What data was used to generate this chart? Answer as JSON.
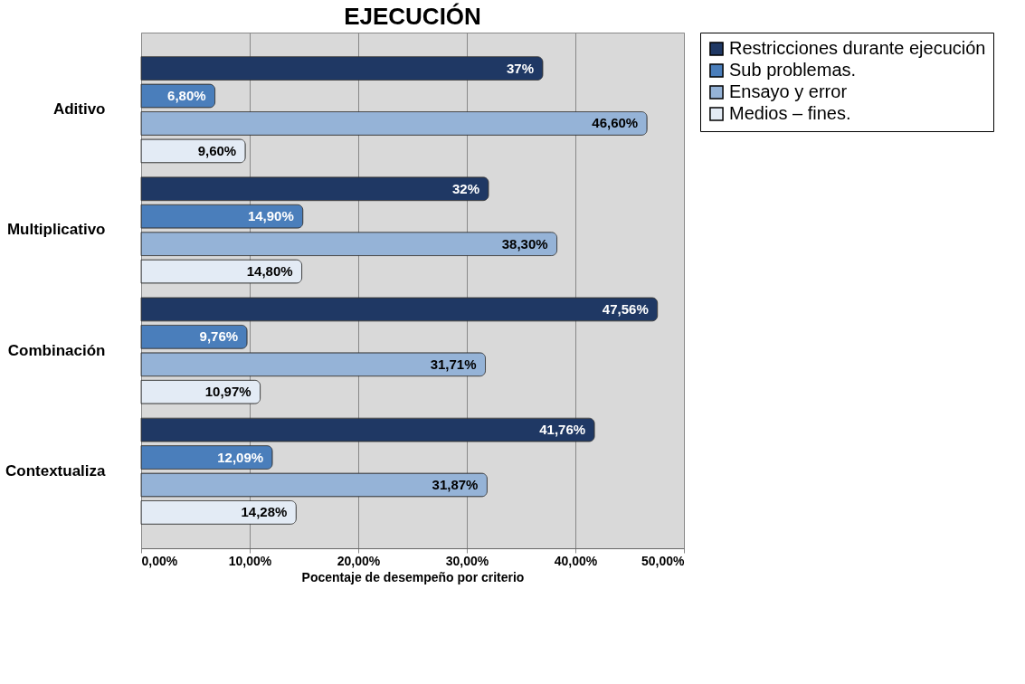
{
  "chart_data": {
    "type": "bar",
    "orientation": "horizontal",
    "title": "EJECUCIÓN",
    "xlabel": "Pocentaje de desempeño por criterio",
    "categories": [
      "Aditivo",
      "Multiplicativo",
      "Combinación",
      "Contextualiza"
    ],
    "series": [
      {
        "name": "Restricciones durante ejecución",
        "color": "#1f3864",
        "values": [
          37,
          32,
          47.56,
          41.76
        ],
        "value_labels": [
          "37%",
          "32%",
          "47,56%",
          "41,76%"
        ]
      },
      {
        "name": "Sub problemas.",
        "color": "#4a7ebb",
        "values": [
          6.8,
          14.9,
          9.76,
          12.09
        ],
        "value_labels": [
          "6,80%",
          "14,90%",
          "9,76%",
          "12,09%"
        ]
      },
      {
        "name": "Ensayo y error",
        "color": "#95b3d7",
        "values": [
          46.6,
          38.3,
          31.71,
          31.87
        ],
        "value_labels": [
          "46,60%",
          "38,30%",
          "31,71%",
          "31,87%"
        ]
      },
      {
        "name": "Medios – fines.",
        "color": "#e3ebf5",
        "values": [
          9.6,
          14.8,
          10.97,
          14.28
        ],
        "value_labels": [
          "9,60%",
          "14,80%",
          "10,97%",
          "14,28%"
        ]
      }
    ],
    "xlim": [
      0,
      50
    ],
    "xticks": [
      {
        "value": 0,
        "label": "0,00%"
      },
      {
        "value": 10,
        "label": "10,00%"
      },
      {
        "value": 20,
        "label": "20,00%"
      },
      {
        "value": 30,
        "label": "30,00%"
      },
      {
        "value": 40,
        "label": "40,00%"
      },
      {
        "value": 50,
        "label": "50,00%"
      }
    ],
    "grid": "x",
    "legend": "right"
  }
}
